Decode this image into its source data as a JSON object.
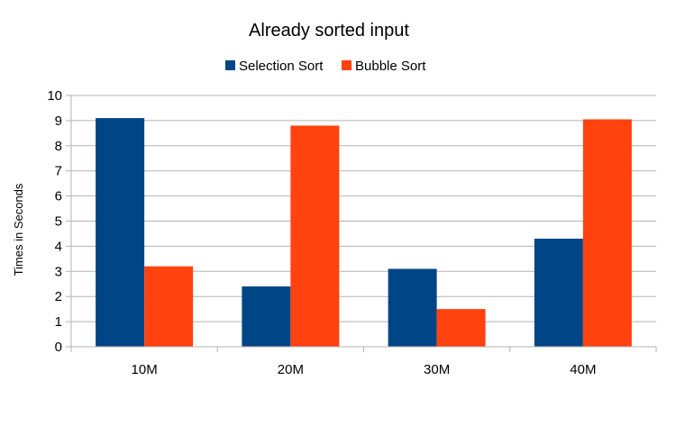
{
  "chart_data": {
    "type": "bar",
    "title": "Already sorted input",
    "xlabel": "",
    "ylabel": "Times in Seconds",
    "categories": [
      "10M",
      "20M",
      "30M",
      "40M"
    ],
    "series": [
      {
        "name": "Selection Sort",
        "color": "#004586",
        "values": [
          9.1,
          2.4,
          3.1,
          4.3
        ]
      },
      {
        "name": "Bubble Sort",
        "color": "#ff420e",
        "values": [
          3.2,
          8.8,
          1.5,
          9.05
        ]
      }
    ],
    "ylim": [
      0,
      10
    ],
    "yticks": [
      "0",
      "1",
      "2",
      "3",
      "4",
      "5",
      "6",
      "7",
      "8",
      "9",
      "10"
    ],
    "grid": true,
    "legend_position": "top"
  }
}
